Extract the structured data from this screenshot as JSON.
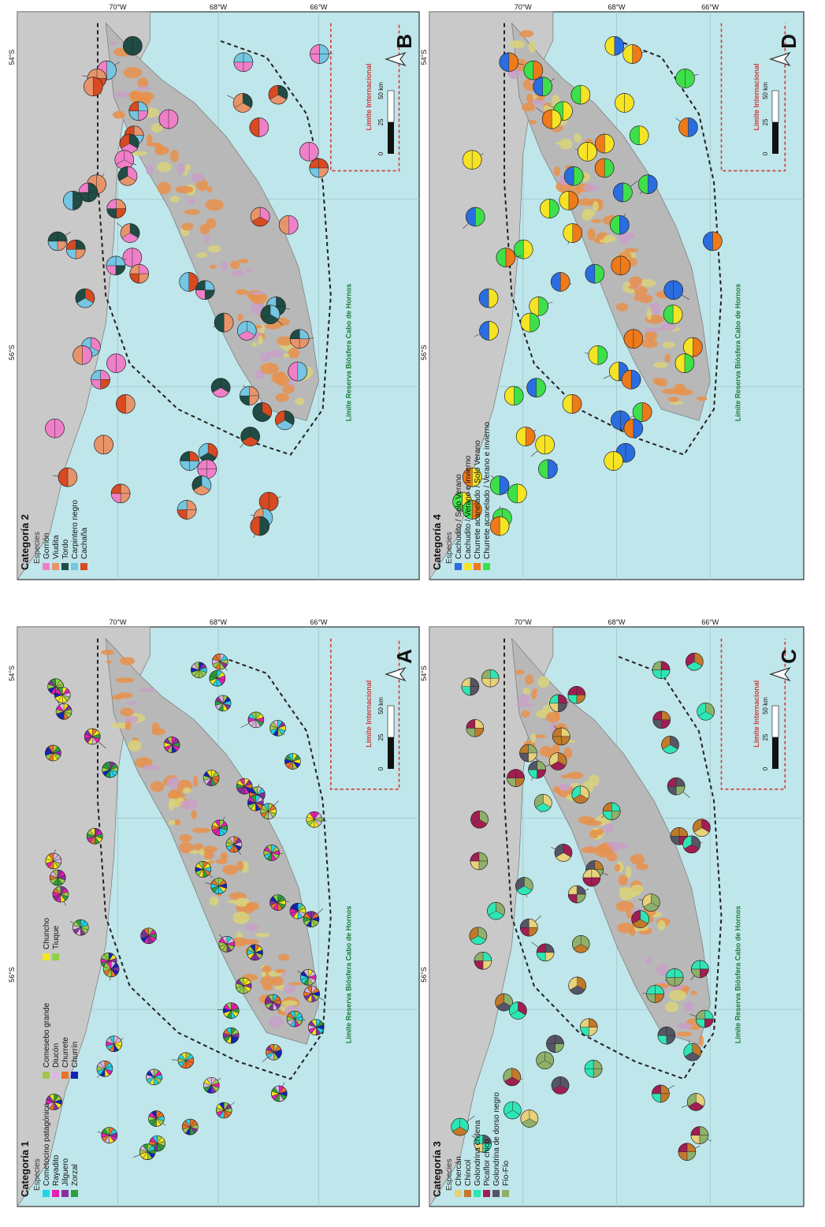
{
  "coord_labels": {
    "lat_54": "54°S",
    "lat_56": "56°S",
    "lon_70": "70°W",
    "lon_68": "68°W",
    "lon_66": "66°W"
  },
  "labels": {
    "reserve": "Límite Reserva Biósfera Cabo de Hornos",
    "international": "Límite Internacional",
    "especies": "Especies",
    "scale": [
      "0",
      "25",
      "50 km"
    ]
  },
  "colors": {
    "ocean": "#bfe6ea",
    "land": "#c9c9c9",
    "forest": "#e8904a",
    "reserve_line": "#222222",
    "intl_line": "#d03a3a"
  },
  "panels": [
    {
      "id": "A",
      "category": "Categoría 1",
      "legend": [
        {
          "name": "Cometocino patagónico",
          "color": "#22d3e6"
        },
        {
          "name": "Rayadito",
          "color": "#e81eb4"
        },
        {
          "name": "Jilguero",
          "color": "#8a2fa0"
        },
        {
          "name": "Zorzal",
          "color": "#2e9e3a"
        },
        {
          "name": "Comesebo grande",
          "color": "#a6c54a"
        },
        {
          "name": "Diucón",
          "color": "#d8b8dc"
        },
        {
          "name": "Churrete",
          "color": "#e8722a"
        },
        {
          "name": "Churrín",
          "color": "#1424b8"
        },
        {
          "name": "Chuncho",
          "color": "#f4e51c"
        },
        {
          "name": "Tiuque",
          "color": "#8fd04a"
        }
      ]
    },
    {
      "id": "B",
      "category": "Categoría 2",
      "legend": [
        {
          "name": "Gorrión",
          "color": "#ef7fc8"
        },
        {
          "name": "Viudita",
          "color": "#e8946a"
        },
        {
          "name": "Tordo",
          "color": "#1f4c44"
        },
        {
          "name": "Carpintero negro",
          "color": "#74c6e2"
        },
        {
          "name": "Cachaña",
          "color": "#d74a22"
        }
      ]
    },
    {
      "id": "C",
      "category": "Categoría 3",
      "legend": [
        {
          "name": "Chercán",
          "color": "#e7d27a"
        },
        {
          "name": "Chincol",
          "color": "#c07a2a"
        },
        {
          "name": "Golondrina chilena",
          "color": "#2ee6b4"
        },
        {
          "name": "Picaflor chico",
          "color": "#a01e52"
        },
        {
          "name": "Golondrina de dorso negro",
          "color": "#555566"
        },
        {
          "name": "Fío-Fío",
          "color": "#8fb06a"
        }
      ]
    },
    {
      "id": "D",
      "category": "Categoría 4",
      "legend": [
        {
          "name": "Cachudito / Solo Verano",
          "color": "#2a6de0"
        },
        {
          "name": "Cachudito / Verano e invierno",
          "color": "#f6e324"
        },
        {
          "name": "Churrete acanelado / Solo Verano",
          "color": "#ee7a1a"
        },
        {
          "name": "Churrete acanelado / Verano e invierno",
          "color": "#3ee04a"
        }
      ]
    }
  ]
}
